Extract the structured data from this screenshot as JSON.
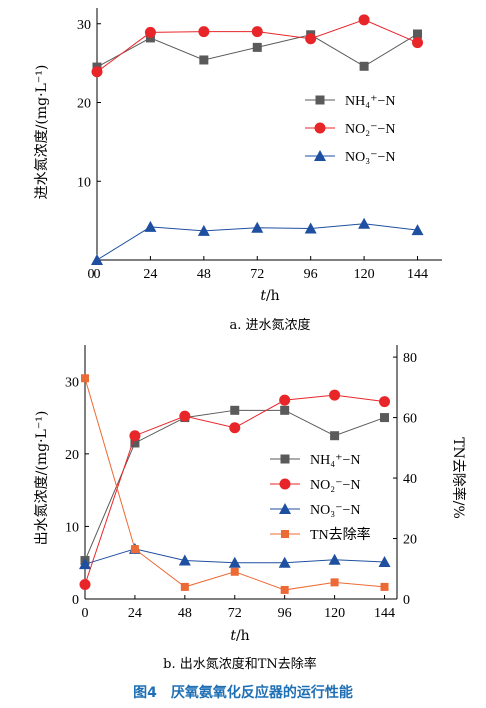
{
  "colors": {
    "nh4": "#5a5a5a",
    "no2": "#e8262a",
    "no3": "#1f4fa0",
    "tn": "#ec6a35"
  },
  "x_ticks": [
    "0",
    "24",
    "48",
    "72",
    "96",
    "120",
    "144"
  ],
  "chart_data": [
    {
      "type": "line",
      "caption": "a. 进水氮浓度",
      "xlabel": "t/h",
      "ylabel": "进水氮浓度/(mg·L⁻¹)",
      "xlim": [
        0,
        155
      ],
      "ylim": [
        0,
        32
      ],
      "y_ticks": [
        "0",
        "10",
        "20",
        "30"
      ],
      "legend_position": "right",
      "series": [
        {
          "name": "NH₄⁺−N",
          "marker": "square",
          "color": "#5a5a5a",
          "x": [
            0,
            24,
            48,
            72,
            96,
            120,
            144
          ],
          "values": [
            24.5,
            28.2,
            25.4,
            27.0,
            28.6,
            24.6,
            28.7
          ]
        },
        {
          "name": "NO₂⁻−N",
          "marker": "circle",
          "color": "#e8262a",
          "x": [
            0,
            24,
            48,
            72,
            96,
            120,
            144
          ],
          "values": [
            23.9,
            28.9,
            29.0,
            29.0,
            28.1,
            30.5,
            27.6
          ]
        },
        {
          "name": "NO₃⁻−N",
          "marker": "triangle",
          "color": "#1f4fa0",
          "x": [
            0,
            24,
            48,
            72,
            96,
            120,
            144
          ],
          "values": [
            0.0,
            4.2,
            3.7,
            4.1,
            4.0,
            4.6,
            3.8
          ]
        }
      ]
    },
    {
      "type": "line",
      "caption": "b. 出水氮浓度和TN去除率",
      "xlabel": "t/h",
      "ylabel": "出水氮浓度/(mg·L⁻¹)",
      "ylabel_right": "TN去除率/%",
      "xlim": [
        0,
        150
      ],
      "ylim": [
        0,
        35
      ],
      "ylim_right": [
        0,
        84
      ],
      "y_ticks": [
        "0",
        "10",
        "20",
        "30"
      ],
      "y_ticks_right": [
        "0",
        "20",
        "40",
        "60",
        "80"
      ],
      "legend_position": "right",
      "series": [
        {
          "name": "NH₄⁺−N",
          "marker": "square",
          "color": "#5a5a5a",
          "axis": "left",
          "x": [
            0,
            24,
            48,
            72,
            96,
            120,
            144
          ],
          "values": [
            5.3,
            21.5,
            25.0,
            26.0,
            26.0,
            22.5,
            25.0
          ]
        },
        {
          "name": "NO₂⁻−N",
          "marker": "circle",
          "color": "#e8262a",
          "axis": "left",
          "x": [
            0,
            24,
            48,
            72,
            96,
            120,
            144
          ],
          "values": [
            2.0,
            22.5,
            25.2,
            23.6,
            27.4,
            28.1,
            27.2
          ]
        },
        {
          "name": "NO₃⁻−N",
          "marker": "triangle",
          "color": "#1f4fa0",
          "axis": "left",
          "x": [
            0,
            24,
            48,
            72,
            96,
            120,
            144
          ],
          "values": [
            4.8,
            6.9,
            5.3,
            5.0,
            5.0,
            5.4,
            5.1
          ]
        },
        {
          "name": "TN去除率",
          "marker": "square-small",
          "color": "#ec6a35",
          "axis": "right",
          "x": [
            0,
            24,
            48,
            72,
            96,
            120,
            144
          ],
          "values": [
            73.0,
            16.5,
            4.0,
            9.0,
            3.0,
            5.5,
            4.0
          ]
        }
      ]
    }
  ],
  "figure_caption": "图4　厌氧氨氧化反应器的运行性能"
}
